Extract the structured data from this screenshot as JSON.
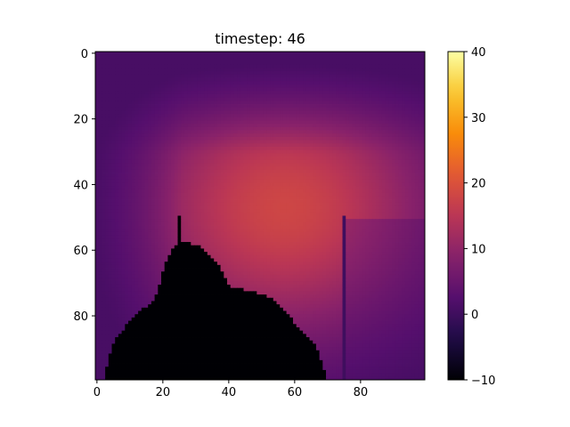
{
  "chart_data": {
    "type": "heatmap",
    "title": "timestep: 46",
    "xlabel": "",
    "ylabel": "",
    "grid_size": [
      100,
      100
    ],
    "xlim": [
      0,
      99
    ],
    "ylim": [
      99,
      0
    ],
    "x_ticks": [
      0,
      20,
      40,
      60,
      80
    ],
    "x_tick_labels": [
      "0",
      "20",
      "40",
      "60",
      "80"
    ],
    "y_ticks": [
      0,
      20,
      40,
      60,
      80
    ],
    "y_tick_labels": [
      "0",
      "20",
      "40",
      "60",
      "80"
    ],
    "colormap": "inferno",
    "vmin": -10,
    "vmax": 40,
    "colorbar": {
      "ticks": [
        -10,
        0,
        10,
        20,
        30,
        40
      ],
      "tick_labels": [
        "−10",
        "0",
        "10",
        "20",
        "30",
        "40"
      ]
    },
    "field_description_values": {
      "background_top_rows": 1,
      "hot_region_peak": 18,
      "hot_region_center": [
        57,
        47
      ],
      "left_edge_value": 5,
      "black_blob_value": -10
    },
    "walls": [
      {
        "x": 25,
        "y_from": 50,
        "y_to": 99,
        "value": -10
      },
      {
        "x": 75,
        "y_from": 50,
        "y_to": 99,
        "value": 0
      }
    ],
    "black_region_boundary": [
      [
        3,
        99
      ],
      [
        4,
        93
      ],
      [
        6,
        88
      ],
      [
        9,
        84
      ],
      [
        12,
        81
      ],
      [
        15,
        78
      ],
      [
        18,
        76
      ],
      [
        19,
        73
      ],
      [
        20,
        70
      ],
      [
        21,
        65
      ],
      [
        23,
        61
      ],
      [
        25,
        58
      ],
      [
        28,
        58
      ],
      [
        31,
        59
      ],
      [
        35,
        62
      ],
      [
        38,
        66
      ],
      [
        40,
        70
      ],
      [
        42,
        72
      ],
      [
        48,
        73
      ],
      [
        53,
        75
      ],
      [
        57,
        78
      ],
      [
        60,
        82
      ],
      [
        64,
        86
      ],
      [
        67,
        90
      ],
      [
        69,
        95
      ],
      [
        70,
        99
      ]
    ]
  }
}
